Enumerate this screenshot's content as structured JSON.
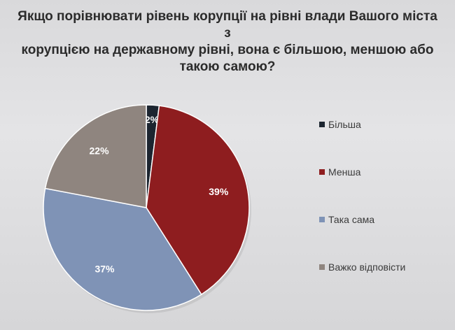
{
  "chart_data": {
    "type": "pie",
    "title": "Якщо порівнювати рівень корупції на рівні влади Вашого міста з корупцією на державному рівні, вона є більшою, меншою або такою самою?",
    "title_lines": [
      "Якщо порівнювати рівень корупції на рівні влади Вашого міста з",
      "корупцією на державному рівні, вона є більшою, меншою або",
      "такою самою?"
    ],
    "legend_position": "right",
    "slices": [
      {
        "label": "Більша",
        "value": 2,
        "value_label": "2%",
        "color": "#1c2530",
        "label_color": "#ffffff"
      },
      {
        "label": "Менша",
        "value": 39,
        "value_label": "39%",
        "color": "#8e1d1f",
        "label_color": "#ffffff"
      },
      {
        "label": "Така сама",
        "value": 37,
        "value_label": "37%",
        "color": "#7f93b6",
        "label_color": "#ffffff"
      },
      {
        "label": "Важко відповісти",
        "value": 22,
        "value_label": "22%",
        "color": "#8f857f",
        "label_color": "#ffffff"
      }
    ]
  }
}
